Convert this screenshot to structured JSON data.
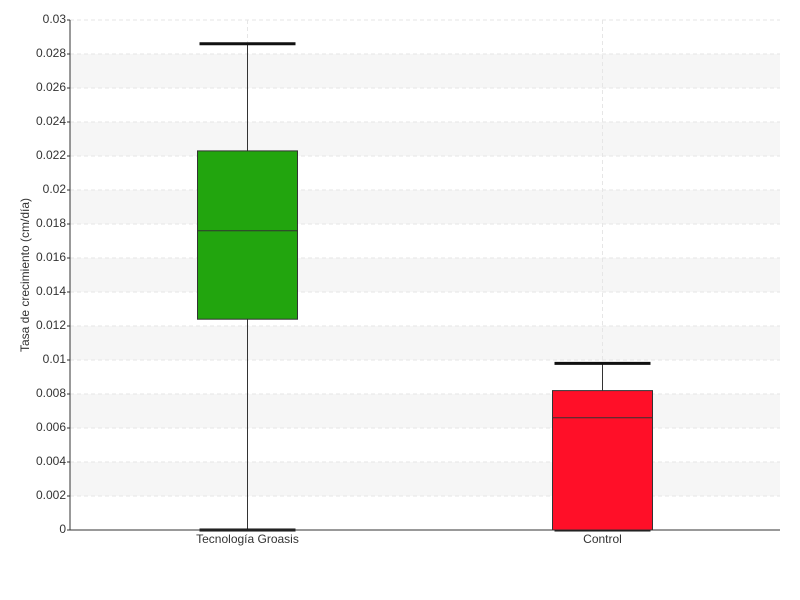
{
  "chart_data": {
    "type": "box",
    "y_label": "Tasa de crecimiento (cm/día)",
    "categories": [
      "Tecnología Groasis",
      "Control"
    ],
    "boxes": [
      {
        "min": 0,
        "q1": 0.0124,
        "median": 0.0176,
        "q3": 0.0223,
        "max": 0.0286,
        "color": "#22a50e"
      },
      {
        "min": 0,
        "q1": 0,
        "median": 0.0066,
        "q3": 0.0082,
        "max": 0.0098,
        "color": "#ff0f28"
      }
    ],
    "ylim": [
      0,
      0.03
    ],
    "yticks": [
      0,
      0.002,
      0.004,
      0.006,
      0.008,
      0.01,
      0.012,
      0.014,
      0.016,
      0.018,
      0.02,
      0.022,
      0.024,
      0.026,
      0.028,
      0.03
    ],
    "grid": true
  }
}
